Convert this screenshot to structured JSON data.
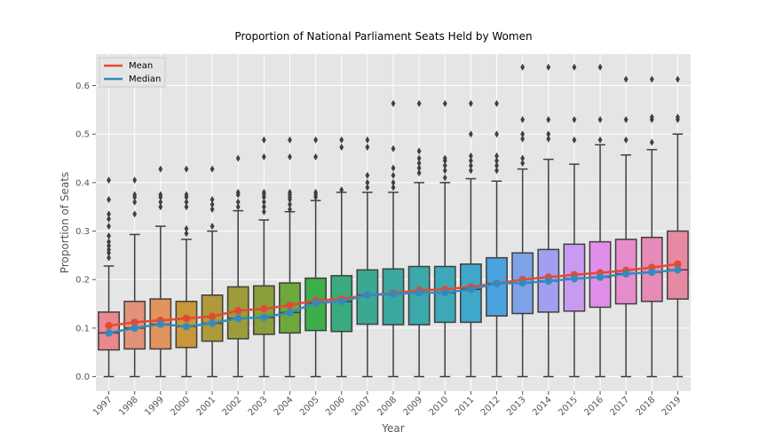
{
  "chart_data": {
    "type": "box",
    "title": "Proportion of National Parliament Seats Held by Women",
    "xlabel": "Year",
    "ylabel": "Proportion of Seats",
    "ylim": [
      -0.03,
      0.665
    ],
    "yticks": [
      "0.0",
      "0.1",
      "0.2",
      "0.3",
      "0.4",
      "0.5",
      "0.6"
    ],
    "grid": true,
    "legend_position": "top-left",
    "categories": [
      "1997",
      "1998",
      "1999",
      "2000",
      "2001",
      "2002",
      "2003",
      "2004",
      "2005",
      "2006",
      "2007",
      "2008",
      "2009",
      "2010",
      "2011",
      "2012",
      "2013",
      "2014",
      "2015",
      "2016",
      "2017",
      "2018",
      "2019"
    ],
    "box_colors": [
      "#e8888f",
      "#e0927a",
      "#e0935b",
      "#c9963b",
      "#b0993a",
      "#9c9c3a",
      "#8a9e3a",
      "#6ca83c",
      "#3dae4a",
      "#3aab7e",
      "#3aa893",
      "#3ba89f",
      "#3ba8aa",
      "#3da9b8",
      "#3fa7c9",
      "#4aa3df",
      "#7ea2e8",
      "#a39ff0",
      "#c79bf1",
      "#e08fe8",
      "#e58dcc",
      "#e68ab8",
      "#e889a4"
    ],
    "boxes": [
      {
        "q1": 0.055,
        "median": 0.09,
        "q3": 0.133,
        "whisker_low": 0.0,
        "whisker_high": 0.228,
        "outliers": [
          0.245,
          0.255,
          0.262,
          0.27,
          0.278,
          0.29,
          0.31,
          0.325,
          0.335,
          0.365,
          0.405
        ]
      },
      {
        "q1": 0.057,
        "median": 0.1,
        "q3": 0.155,
        "whisker_low": 0.0,
        "whisker_high": 0.293,
        "outliers": [
          0.335,
          0.36,
          0.37,
          0.375,
          0.405
        ]
      },
      {
        "q1": 0.057,
        "median": 0.108,
        "q3": 0.16,
        "whisker_low": 0.0,
        "whisker_high": 0.31,
        "outliers": [
          0.35,
          0.36,
          0.37,
          0.375,
          0.428
        ]
      },
      {
        "q1": 0.06,
        "median": 0.103,
        "q3": 0.155,
        "whisker_low": 0.0,
        "whisker_high": 0.283,
        "outliers": [
          0.295,
          0.305,
          0.35,
          0.36,
          0.37,
          0.375,
          0.428
        ]
      },
      {
        "q1": 0.073,
        "median": 0.11,
        "q3": 0.168,
        "whisker_low": 0.0,
        "whisker_high": 0.3,
        "outliers": [
          0.31,
          0.345,
          0.355,
          0.365,
          0.428
        ]
      },
      {
        "q1": 0.078,
        "median": 0.12,
        "q3": 0.185,
        "whisker_low": 0.0,
        "whisker_high": 0.342,
        "outliers": [
          0.35,
          0.36,
          0.375,
          0.38,
          0.45
        ]
      },
      {
        "q1": 0.087,
        "median": 0.122,
        "q3": 0.187,
        "whisker_low": 0.0,
        "whisker_high": 0.323,
        "outliers": [
          0.34,
          0.35,
          0.36,
          0.37,
          0.375,
          0.38,
          0.453,
          0.488
        ]
      },
      {
        "q1": 0.09,
        "median": 0.132,
        "q3": 0.193,
        "whisker_low": 0.0,
        "whisker_high": 0.34,
        "outliers": [
          0.345,
          0.355,
          0.365,
          0.37,
          0.375,
          0.38,
          0.453,
          0.488
        ]
      },
      {
        "q1": 0.095,
        "median": 0.152,
        "q3": 0.203,
        "whisker_low": 0.0,
        "whisker_high": 0.363,
        "outliers": [
          0.37,
          0.375,
          0.38,
          0.453,
          0.488
        ]
      },
      {
        "q1": 0.093,
        "median": 0.155,
        "q3": 0.208,
        "whisker_low": 0.0,
        "whisker_high": 0.38,
        "outliers": [
          0.385,
          0.473,
          0.488
        ]
      },
      {
        "q1": 0.108,
        "median": 0.168,
        "q3": 0.22,
        "whisker_low": 0.0,
        "whisker_high": 0.38,
        "outliers": [
          0.39,
          0.4,
          0.415,
          0.473,
          0.488
        ]
      },
      {
        "q1": 0.107,
        "median": 0.17,
        "q3": 0.222,
        "whisker_low": 0.0,
        "whisker_high": 0.38,
        "outliers": [
          0.39,
          0.4,
          0.415,
          0.43,
          0.47,
          0.563
        ]
      },
      {
        "q1": 0.107,
        "median": 0.173,
        "q3": 0.227,
        "whisker_low": 0.0,
        "whisker_high": 0.4,
        "outliers": [
          0.42,
          0.43,
          0.44,
          0.45,
          0.465,
          0.563
        ]
      },
      {
        "q1": 0.112,
        "median": 0.173,
        "q3": 0.227,
        "whisker_low": 0.0,
        "whisker_high": 0.4,
        "outliers": [
          0.41,
          0.425,
          0.435,
          0.445,
          0.45,
          0.563
        ]
      },
      {
        "q1": 0.112,
        "median": 0.18,
        "q3": 0.232,
        "whisker_low": 0.0,
        "whisker_high": 0.408,
        "outliers": [
          0.425,
          0.435,
          0.445,
          0.455,
          0.5,
          0.563
        ]
      },
      {
        "q1": 0.125,
        "median": 0.192,
        "q3": 0.245,
        "whisker_low": 0.0,
        "whisker_high": 0.403,
        "outliers": [
          0.425,
          0.435,
          0.445,
          0.455,
          0.5,
          0.563
        ]
      },
      {
        "q1": 0.13,
        "median": 0.193,
        "q3": 0.255,
        "whisker_low": 0.0,
        "whisker_high": 0.428,
        "outliers": [
          0.44,
          0.45,
          0.49,
          0.5,
          0.53,
          0.638
        ]
      },
      {
        "q1": 0.133,
        "median": 0.197,
        "q3": 0.262,
        "whisker_low": 0.0,
        "whisker_high": 0.448,
        "outliers": [
          0.49,
          0.5,
          0.53,
          0.638
        ]
      },
      {
        "q1": 0.135,
        "median": 0.202,
        "q3": 0.273,
        "whisker_low": 0.0,
        "whisker_high": 0.438,
        "outliers": [
          0.488,
          0.53,
          0.638
        ]
      },
      {
        "q1": 0.143,
        "median": 0.205,
        "q3": 0.278,
        "whisker_low": 0.0,
        "whisker_high": 0.478,
        "outliers": [
          0.488,
          0.53,
          0.638
        ]
      },
      {
        "q1": 0.15,
        "median": 0.212,
        "q3": 0.283,
        "whisker_low": 0.0,
        "whisker_high": 0.457,
        "outliers": [
          0.488,
          0.53,
          0.613
        ]
      },
      {
        "q1": 0.155,
        "median": 0.215,
        "q3": 0.287,
        "whisker_low": 0.0,
        "whisker_high": 0.468,
        "outliers": [
          0.483,
          0.53,
          0.535,
          0.613
        ]
      },
      {
        "q1": 0.16,
        "median": 0.22,
        "q3": 0.3,
        "whisker_low": 0.0,
        "whisker_high": 0.5,
        "outliers": [
          0.53,
          0.535,
          0.613
        ]
      }
    ],
    "series": [
      {
        "name": "Mean",
        "color": "#e24a33",
        "values": [
          0.105,
          0.112,
          0.116,
          0.12,
          0.124,
          0.136,
          0.14,
          0.147,
          0.157,
          0.16,
          0.168,
          0.172,
          0.178,
          0.18,
          0.185,
          0.192,
          0.2,
          0.205,
          0.21,
          0.214,
          0.219,
          0.225,
          0.232
        ]
      },
      {
        "name": "Median",
        "color": "#348abd",
        "values": [
          0.09,
          0.1,
          0.108,
          0.103,
          0.11,
          0.12,
          0.122,
          0.132,
          0.152,
          0.155,
          0.168,
          0.17,
          0.173,
          0.173,
          0.18,
          0.192,
          0.193,
          0.197,
          0.202,
          0.205,
          0.212,
          0.215,
          0.22
        ]
      }
    ]
  }
}
